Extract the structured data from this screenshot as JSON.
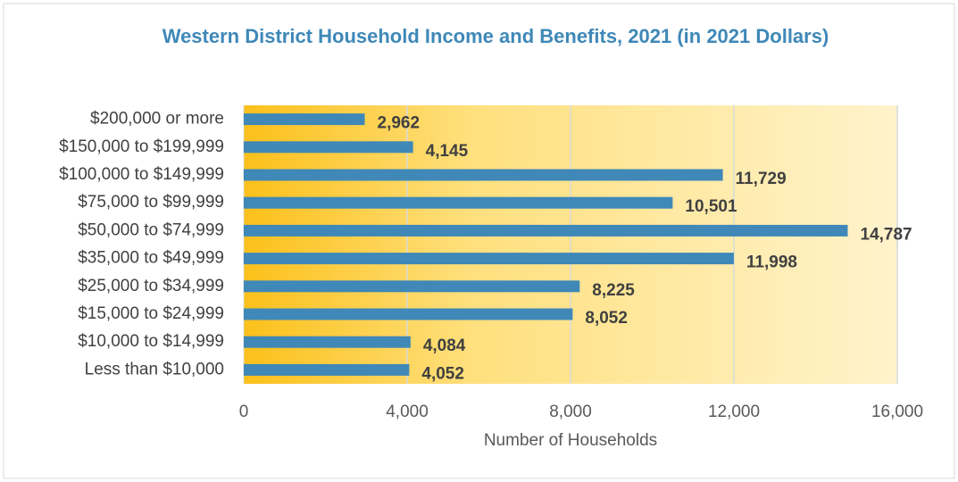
{
  "chart_data": {
    "type": "bar",
    "orientation": "horizontal",
    "title": "Western District Household Income and Benefits, 2021 (in 2021 Dollars)",
    "xlabel": "Number of Households",
    "categories": [
      "Less than $10,000",
      "$10,000 to $14,999",
      "$15,000 to $24,999",
      "$25,000 to $34,999",
      "$35,000 to $49,999",
      "$50,000 to $74,999",
      "$75,000 to $99,999",
      "$100,000 to $149,999",
      "$150,000 to $199,999",
      "$200,000 or more"
    ],
    "values": [
      4052,
      4084,
      8052,
      8225,
      11998,
      14787,
      10501,
      11729,
      4145,
      2962
    ],
    "value_labels": [
      "4,052",
      "4,084",
      "8,052",
      "8,225",
      "11,998",
      "14,787",
      "10,501",
      "11,729",
      "4,145",
      "2,962"
    ],
    "color": "#3f88b8",
    "xlim": [
      0,
      16000
    ],
    "xticks": [
      0,
      {
        "value": 4000,
        "label": "4,000"
      },
      {
        "value": 8000,
        "label": "8,000"
      },
      {
        "value": 12000,
        "label": "12,000"
      },
      {
        "value": 16000,
        "label": "16,000"
      }
    ],
    "grid": true
  }
}
